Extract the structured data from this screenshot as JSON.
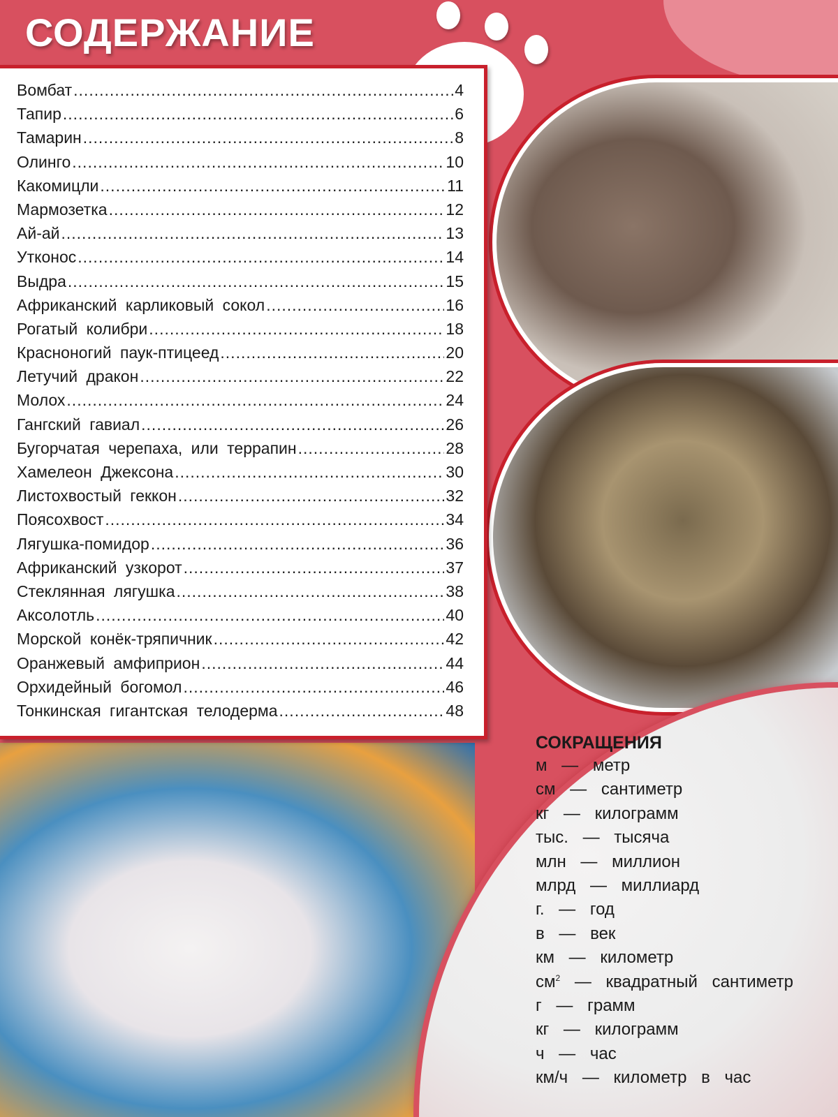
{
  "header": {
    "title": "СОДЕРЖАНИЕ"
  },
  "toc": [
    {
      "name": "Вомбат",
      "page": "4"
    },
    {
      "name": "Тапир",
      "page": "6"
    },
    {
      "name": "Тамарин",
      "page": "8"
    },
    {
      "name": "Олинго",
      "page": "10"
    },
    {
      "name": "Какомицли",
      "page": "11"
    },
    {
      "name": "Мармозетка",
      "page": "12"
    },
    {
      "name": "Ай-ай",
      "page": "13"
    },
    {
      "name": "Утконос",
      "page": "14"
    },
    {
      "name": "Выдра",
      "page": "15"
    },
    {
      "name": "Африканский карликовый сокол",
      "page": "16"
    },
    {
      "name": "Рогатый колибри",
      "page": "18"
    },
    {
      "name": "Красноногий паук-птицеед",
      "page": "20"
    },
    {
      "name": "Летучий дракон",
      "page": "22"
    },
    {
      "name": "Молох",
      "page": "24"
    },
    {
      "name": "Гангский гавиал",
      "page": "26"
    },
    {
      "name": "Бугорчатая черепаха, или террапин",
      "page": "28"
    },
    {
      "name": "Хамелеон Джексона",
      "page": "30"
    },
    {
      "name": "Листохвостый геккон",
      "page": "32"
    },
    {
      "name": "Поясохвост",
      "page": "34"
    },
    {
      "name": "Лягушка-помидор",
      "page": "36"
    },
    {
      "name": "Африканский узкорот",
      "page": "37"
    },
    {
      "name": "Стеклянная лягушка",
      "page": "38"
    },
    {
      "name": "Аксолотль",
      "page": "40"
    },
    {
      "name": "Морской конёк-тряпичник",
      "page": "42"
    },
    {
      "name": "Оранжевый амфиприон",
      "page": "44"
    },
    {
      "name": "Орхидейный богомол",
      "page": "46"
    },
    {
      "name": "Тонкинская гигантская телодерма",
      "page": "48"
    }
  ],
  "abbreviations": {
    "title": "СОКРАЩЕНИЯ",
    "items": [
      {
        "abbr": "м",
        "full": "метр"
      },
      {
        "abbr": "см",
        "full": "сантиметр"
      },
      {
        "abbr": "кг",
        "full": "килограмм"
      },
      {
        "abbr": "тыс.",
        "full": "тысяча"
      },
      {
        "abbr": "млн",
        "full": "миллион"
      },
      {
        "abbr": "млрд",
        "full": "миллиард"
      },
      {
        "abbr": "г.",
        "full": "год"
      },
      {
        "abbr": "в",
        "full": "век"
      },
      {
        "abbr": "км",
        "full": "километр"
      },
      {
        "abbr": "см",
        "sup": "2",
        "full": "квадратный сантиметр"
      },
      {
        "abbr": "г",
        "full": "грамм"
      },
      {
        "abbr": "кг",
        "full": "килограмм"
      },
      {
        "abbr": "ч",
        "full": "час"
      },
      {
        "abbr": "км/ч",
        "full": "километр в час"
      }
    ]
  },
  "colors": {
    "background": "#d8505f",
    "border": "#c8202c"
  }
}
